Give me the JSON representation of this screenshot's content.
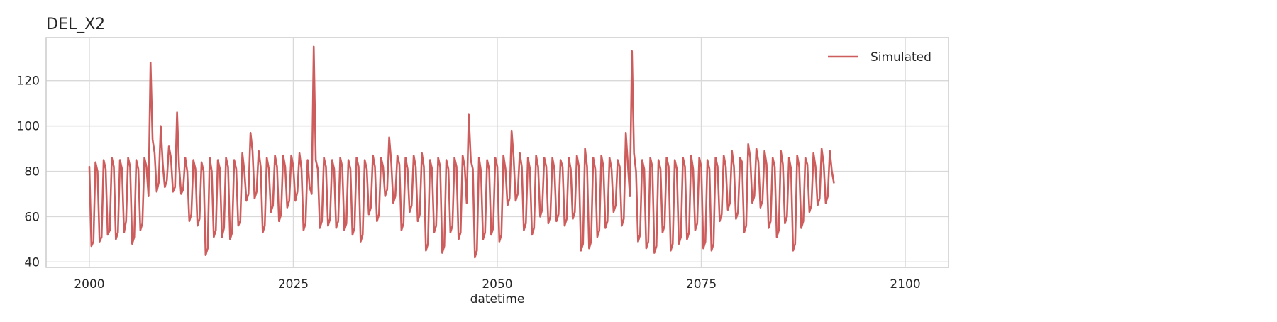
{
  "chart_data": {
    "type": "line",
    "title": "DEL_X2",
    "xlabel": "datetime",
    "ylabel": "",
    "xlim": [
      1994.7,
      2105.3
    ],
    "ylim": [
      37.6,
      139.0
    ],
    "grid": true,
    "legend": {
      "position": "top-right",
      "entries": [
        "Simulated"
      ]
    },
    "x_ticks": [
      2000,
      2025,
      2050,
      2075,
      2100
    ],
    "y_ticks": [
      40,
      60,
      80,
      100,
      120
    ],
    "series": [
      {
        "name": "Simulated",
        "color": "#cd5c5c",
        "x_start": 2000.0,
        "x_step": 0.25,
        "values": [
          82,
          47,
          49,
          84,
          80,
          49,
          51,
          85,
          81,
          52,
          54,
          86,
          82,
          50,
          53,
          85,
          81,
          53,
          58,
          86,
          82,
          48,
          51,
          85,
          81,
          54,
          57,
          86,
          82,
          69,
          128,
          94,
          88,
          71,
          75,
          100,
          83,
          73,
          76,
          91,
          86,
          71,
          73,
          106,
          82,
          70,
          72,
          86,
          80,
          58,
          61,
          85,
          81,
          56,
          59,
          84,
          80,
          43,
          46,
          86,
          80,
          51,
          54,
          85,
          81,
          51,
          55,
          86,
          82,
          50,
          53,
          85,
          81,
          56,
          58,
          88,
          80,
          67,
          70,
          97,
          89,
          68,
          71,
          89,
          82,
          53,
          56,
          86,
          81,
          62,
          65,
          87,
          82,
          58,
          61,
          87,
          82,
          64,
          67,
          87,
          82,
          67,
          71,
          88,
          81,
          54,
          57,
          85,
          73,
          70,
          135,
          85,
          81,
          55,
          58,
          86,
          82,
          56,
          59,
          85,
          81,
          55,
          58,
          86,
          82,
          54,
          57,
          85,
          81,
          52,
          55,
          86,
          82,
          49,
          52,
          85,
          81,
          61,
          64,
          87,
          82,
          58,
          61,
          86,
          82,
          69,
          72,
          95,
          84,
          66,
          69,
          87,
          83,
          54,
          57,
          86,
          81,
          62,
          65,
          87,
          82,
          58,
          61,
          88,
          82,
          45,
          48,
          85,
          81,
          53,
          56,
          86,
          82,
          44,
          47,
          85,
          81,
          53,
          56,
          86,
          82,
          50,
          53,
          87,
          82,
          66,
          105,
          85,
          81,
          42,
          45,
          86,
          80,
          50,
          53,
          85,
          81,
          52,
          55,
          86,
          82,
          49,
          52,
          87,
          81,
          65,
          68,
          98,
          86,
          67,
          70,
          88,
          82,
          54,
          57,
          86,
          81,
          52,
          55,
          87,
          82,
          60,
          63,
          86,
          82,
          57,
          60,
          86,
          81,
          58,
          61,
          85,
          82,
          56,
          59,
          86,
          81,
          59,
          62,
          87,
          82,
          45,
          48,
          90,
          82,
          46,
          49,
          86,
          81,
          51,
          54,
          87,
          82,
          55,
          58,
          86,
          81,
          62,
          65,
          85,
          82,
          56,
          59,
          97,
          83,
          69,
          133,
          88,
          80,
          49,
          52,
          85,
          81,
          46,
          49,
          86,
          82,
          44,
          47,
          85,
          81,
          53,
          56,
          86,
          82,
          45,
          48,
          85,
          81,
          48,
          51,
          86,
          82,
          50,
          53,
          87,
          81,
          54,
          57,
          86,
          82,
          46,
          49,
          85,
          81,
          45,
          48,
          86,
          82,
          58,
          61,
          87,
          82,
          63,
          66,
          89,
          82,
          59,
          62,
          86,
          84,
          53,
          56,
          92,
          86,
          66,
          69,
          90,
          84,
          64,
          67,
          89,
          83,
          55,
          58,
          86,
          82,
          51,
          54,
          89,
          83,
          57,
          60,
          86,
          81,
          45,
          48,
          87,
          82,
          55,
          58,
          86,
          83,
          62,
          65,
          88,
          82,
          65,
          68,
          90,
          83,
          66,
          69,
          89,
          80,
          75
        ]
      }
    ]
  }
}
